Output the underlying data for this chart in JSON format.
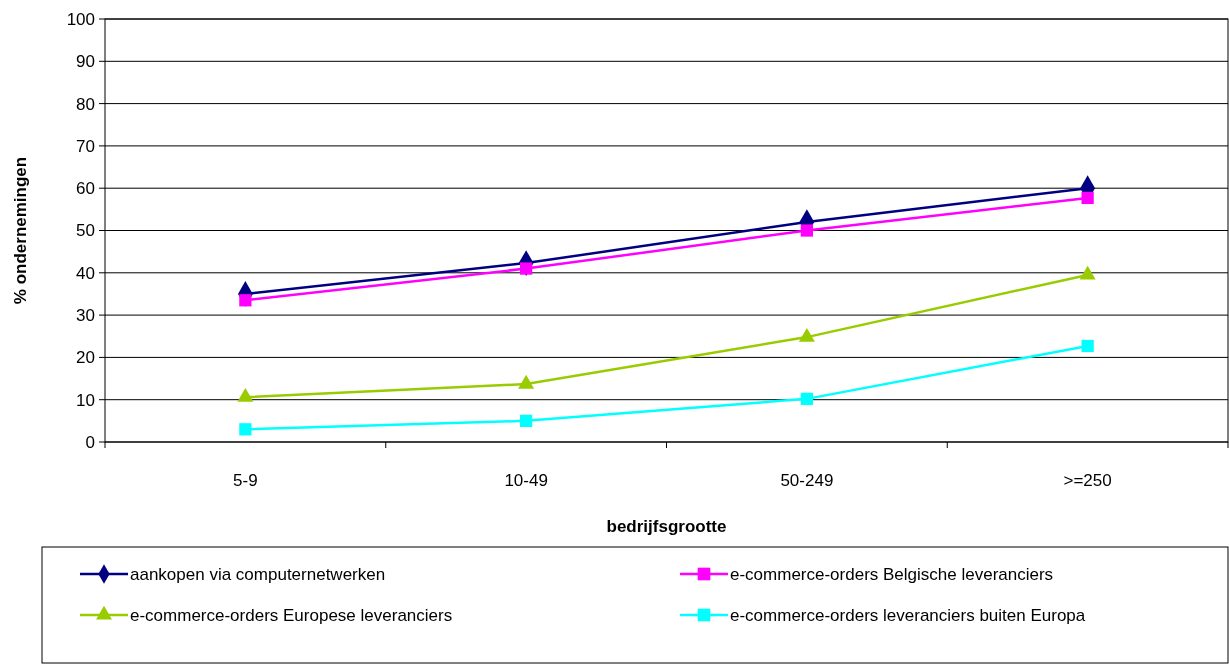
{
  "chart_data": {
    "type": "line",
    "xlabel": "bedrijfsgrootte",
    "ylabel": "% ondernemingen",
    "categories": [
      "5-9",
      "10-49",
      "50-249",
      ">=250"
    ],
    "series": [
      {
        "name": "aankopen via computernetwerken",
        "color": "#000080",
        "marker": "diamond",
        "values": [
          35,
          42.3,
          52,
          60
        ]
      },
      {
        "name": "e-commerce-orders Belgische leveranciers",
        "color": "#ff00ff",
        "marker": "square",
        "values": [
          33.5,
          41,
          50,
          57.7
        ]
      },
      {
        "name": "e-commerce-orders Europese leveranciers",
        "color": "#99cc00",
        "marker": "triangle",
        "values": [
          10.6,
          13.7,
          24.8,
          39.5
        ]
      },
      {
        "name": "e-commerce-orders leveranciers buiten Europa",
        "color": "#00ffff",
        "marker": "square",
        "values": [
          3,
          5,
          10.2,
          22.7
        ]
      }
    ],
    "ylim": [
      0,
      100
    ],
    "yticks": [
      0,
      10,
      20,
      30,
      40,
      50,
      60,
      70,
      80,
      90,
      100
    ],
    "grid": "y",
    "legend": "bottom",
    "line_style": "solid"
  }
}
